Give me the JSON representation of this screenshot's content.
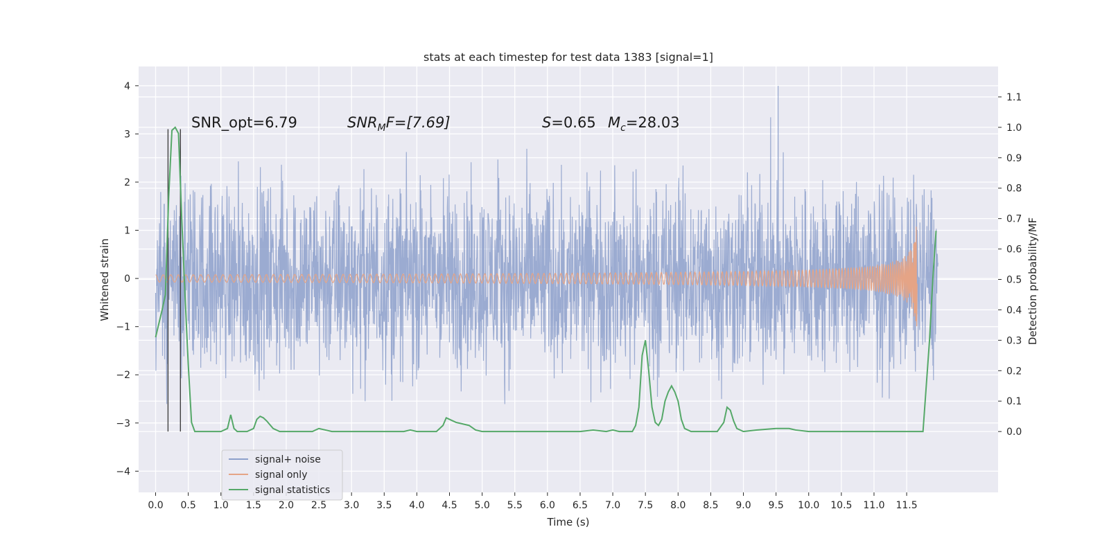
{
  "chart_data": {
    "type": "line",
    "title": "stats at each timestep for test data 1383 [signal=1]",
    "xlabel": "Time (s)",
    "ylabel_left": "Whitened strain",
    "ylabel_right": "Detection probability/MF",
    "xlim": [
      -0.26,
      12.9
    ],
    "ylim_left": [
      -4.44,
      4.4
    ],
    "ylim_right": [
      -0.2,
      1.2
    ],
    "x_ticks": [
      "0.0",
      "0.5",
      "1.0",
      "1.5",
      "2.0",
      "2.5",
      "3.0",
      "3.5",
      "4.0",
      "4.5",
      "5.0",
      "5.5",
      "6.0",
      "6.5",
      "7.0",
      "7.5",
      "8.0",
      "8.5",
      "9.0",
      "9.5",
      "10.0",
      "10.5",
      "11.0",
      "11.5"
    ],
    "y_left_ticks": [
      "4",
      "3",
      "2",
      "1",
      "0",
      "−1",
      "−2",
      "−3",
      "−4"
    ],
    "y_right_ticks": [
      "1.1",
      "1.0",
      "0.9",
      "0.8",
      "0.7",
      "0.6",
      "0.5",
      "0.4",
      "0.3",
      "0.2",
      "0.1",
      "0.0"
    ],
    "annotations": {
      "snr_opt": "SNR_opt=6.79",
      "snr_mf_main": "SNR",
      "snr_mf_sub": "M",
      "snr_mf_rest": "F=[7.69]",
      "s_label": "S",
      "s_value": "=0.65",
      "mc_main": "M",
      "mc_sub": "c",
      "mc_value": "=28.03"
    },
    "vertical_markers_x": [
      0.19,
      0.38
    ],
    "legend": {
      "placement": "lower-left",
      "entries": [
        "signal+ noise",
        "signal only",
        "signal statistics"
      ]
    },
    "colors": {
      "signal_noise": "#8da0cb",
      "signal_only": "#e5a486",
      "statistics": "#55a868",
      "marker": "#404040",
      "plot_bg": "#eaeaf2",
      "grid": "#ffffff"
    },
    "series": [
      {
        "name": "signal+ noise",
        "axis": "left",
        "description_range": [
          -1.8,
          1.8
        ],
        "x_range": [
          0.0,
          11.98
        ]
      },
      {
        "name": "signal only",
        "axis": "left",
        "x_range": [
          0.0,
          11.66
        ],
        "peak_amplitude": 1.5
      },
      {
        "name": "signal statistics",
        "axis": "right",
        "x": [
          0.0,
          0.1,
          0.15,
          0.2,
          0.25,
          0.3,
          0.35,
          0.4,
          0.45,
          0.5,
          0.55,
          0.6,
          0.7,
          0.8,
          0.9,
          1.0,
          1.1,
          1.15,
          1.2,
          1.25,
          1.3,
          1.4,
          1.5,
          1.55,
          1.6,
          1.65,
          1.7,
          1.8,
          1.9,
          2.0,
          2.2,
          2.4,
          2.5,
          2.6,
          2.7,
          3.0,
          3.5,
          3.8,
          3.9,
          4.0,
          4.2,
          4.3,
          4.4,
          4.45,
          4.5,
          4.6,
          4.7,
          4.8,
          4.9,
          5.0,
          5.2,
          5.5,
          6.0,
          6.5,
          6.7,
          6.9,
          7.0,
          7.1,
          7.2,
          7.3,
          7.35,
          7.4,
          7.45,
          7.5,
          7.55,
          7.6,
          7.65,
          7.7,
          7.75,
          7.8,
          7.85,
          7.9,
          7.95,
          8.0,
          8.05,
          8.1,
          8.2,
          8.4,
          8.6,
          8.7,
          8.75,
          8.8,
          8.85,
          8.9,
          9.0,
          9.2,
          9.5,
          9.7,
          9.8,
          10.0,
          10.5,
          11.0,
          11.5,
          11.75,
          11.85,
          11.9,
          11.95
        ],
        "values": [
          0.31,
          0.4,
          0.45,
          0.77,
          0.99,
          1.0,
          0.98,
          0.7,
          0.45,
          0.22,
          0.03,
          0.0,
          0.0,
          0.0,
          0.0,
          0.0,
          0.01,
          0.055,
          0.01,
          0.0,
          0.0,
          0.0,
          0.01,
          0.04,
          0.05,
          0.045,
          0.035,
          0.01,
          0.0,
          0.0,
          0.0,
          0.0,
          0.01,
          0.005,
          0.0,
          0.0,
          0.0,
          0.0,
          0.005,
          0.0,
          0.0,
          0.0,
          0.02,
          0.045,
          0.04,
          0.03,
          0.025,
          0.02,
          0.005,
          0.0,
          0.0,
          0.0,
          0.0,
          0.0,
          0.005,
          0.0,
          0.005,
          0.0,
          0.0,
          0.0,
          0.02,
          0.08,
          0.25,
          0.3,
          0.2,
          0.08,
          0.03,
          0.02,
          0.04,
          0.1,
          0.13,
          0.15,
          0.13,
          0.1,
          0.04,
          0.01,
          0.0,
          0.0,
          0.0,
          0.03,
          0.08,
          0.07,
          0.035,
          0.01,
          0.0,
          0.005,
          0.01,
          0.01,
          0.005,
          0.0,
          0.0,
          0.0,
          0.0,
          0.0,
          0.3,
          0.5,
          0.66
        ]
      }
    ]
  }
}
